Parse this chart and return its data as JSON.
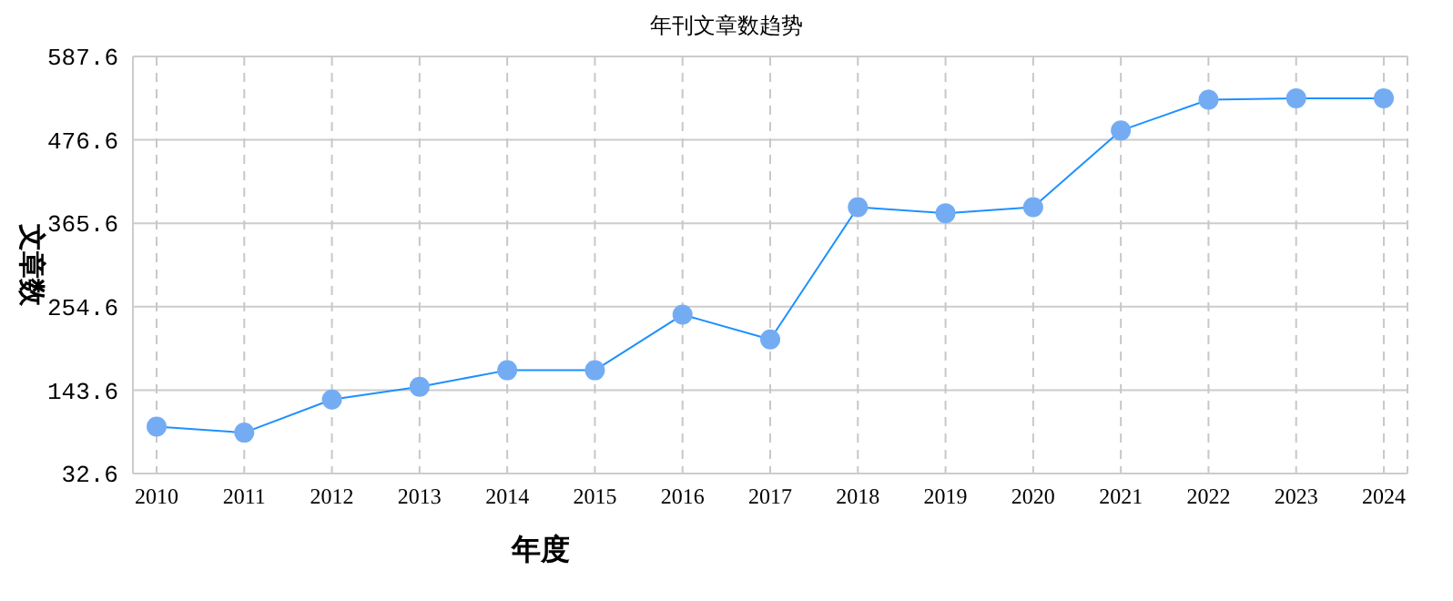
{
  "chart_data": {
    "type": "line",
    "title": "年刊文章数趋势",
    "xlabel": "年度",
    "ylabel": "文章数",
    "categories": [
      "2010",
      "2011",
      "2012",
      "2013",
      "2014",
      "2015",
      "2016",
      "2017",
      "2018",
      "2019",
      "2020",
      "2021",
      "2022",
      "2023",
      "2024"
    ],
    "series": [
      {
        "color": "#1e90ff",
        "values": [
          95,
          87,
          131,
          148,
          170,
          170,
          244,
          211,
          387,
          379,
          387,
          489,
          530,
          532,
          532
        ]
      }
    ],
    "ylim": [
      32.6,
      587.6
    ],
    "yticks": [
      32.6,
      143.6,
      254.6,
      365.6,
      476.6,
      587.6
    ],
    "grid": true,
    "legend": false,
    "marker": "circle",
    "line_style": "solid"
  }
}
